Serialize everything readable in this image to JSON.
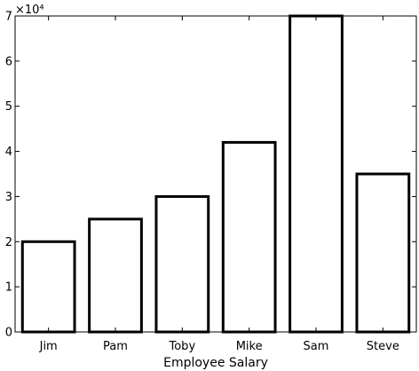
{
  "chart_data": {
    "type": "bar",
    "title": "",
    "xlabel": "Employee Salary",
    "ylabel": "",
    "categories": [
      "Jim",
      "Pam",
      "Toby",
      "Mike",
      "Sam",
      "Steve"
    ],
    "values": [
      20000,
      25000,
      30000,
      42000,
      70000,
      35000
    ],
    "ylim": [
      0,
      70000
    ],
    "yticks": [
      0,
      1,
      2,
      3,
      4,
      5,
      6,
      7
    ],
    "y_exponent_label": "×10⁴",
    "grid": false,
    "legend": "none",
    "colors": {
      "bar_fill": "#ffffff",
      "bar_edge": "#000000",
      "axis": "#000000"
    }
  }
}
